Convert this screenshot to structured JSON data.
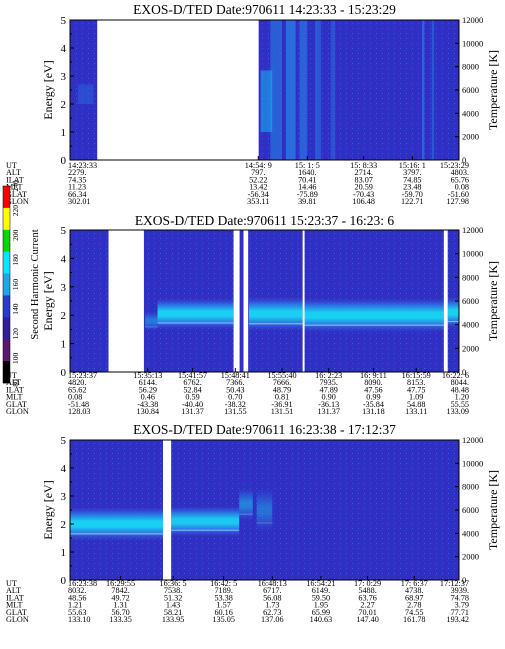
{
  "chart_data": [
    {
      "type": "heatmap",
      "title": "EXOS-D/TED   Date:970611  14:23:33 - 15:23:29",
      "ylabel": "Energy [eV]",
      "y2label": "Temperature [K]",
      "ylim": [
        0,
        5
      ],
      "y2lim": [
        0,
        12000
      ],
      "yticks": [
        "0",
        "1",
        "2",
        "3",
        "4",
        "5"
      ],
      "y2ticks": [
        "0",
        "2000",
        "4000",
        "6000",
        "8000",
        "10000",
        "12000"
      ],
      "row_labels": [
        "UT",
        "ALT",
        "ILAT",
        "MLT",
        "GLAT",
        "GLON"
      ],
      "columns": [
        {
          "f": 0.0,
          "values": [
            "14:23:33",
            "2279.",
            "74.35",
            "11.23",
            "66.34",
            "302.01"
          ]
        },
        {
          "f": 0.484,
          "values": [
            "14:54: 9",
            "797.",
            "52.22",
            "13.42",
            "-56.34",
            "353.11"
          ]
        },
        {
          "f": 0.61,
          "values": [
            "15: 1: 5",
            "1640.",
            "70.41",
            "14.46",
            "-75.89",
            "39.81"
          ]
        },
        {
          "f": 0.755,
          "values": [
            "15: 8:33",
            "2714.",
            "83.07",
            "20.59",
            "-70.43",
            "106.48"
          ]
        },
        {
          "f": 0.88,
          "values": [
            "15:16: 1",
            "3797.",
            "74.85",
            "23.48",
            "-59.70",
            "122.71"
          ]
        },
        {
          "f": 1.0,
          "values": [
            "15:23:29",
            "4803.",
            "65.76",
            "0.08",
            "-51.60",
            "127.98"
          ]
        }
      ],
      "gaps": [
        [
          0.07,
          0.485
        ]
      ],
      "bands": []
    },
    {
      "type": "heatmap",
      "title": "EXOS-D/TED   Date:970611  15:23:37 - 16:23: 6",
      "ylabel": "Energy [eV]",
      "y2label": "Temperature [K]",
      "ylim": [
        0,
        5
      ],
      "y2lim": [
        0,
        12000
      ],
      "yticks": [
        "0",
        "1",
        "2",
        "3",
        "4",
        "5"
      ],
      "y2ticks": [
        "0",
        "2000",
        "4000",
        "6000",
        "8000",
        "10000",
        "12000"
      ],
      "row_labels": [
        "UT",
        "ALT",
        "ILAT",
        "MLT",
        "GLAT",
        "GLON"
      ],
      "columns": [
        {
          "f": 0.0,
          "values": [
            "15:23:37",
            "4820.",
            "65.62",
            "0.08",
            "-51.48",
            "128.03"
          ]
        },
        {
          "f": 0.2,
          "values": [
            "15:35:13",
            "6144.",
            "56.29",
            "0.46",
            "-43.38",
            "130.84"
          ]
        },
        {
          "f": 0.315,
          "values": [
            "15:41:57",
            "6762.",
            "52.84",
            "0.59",
            "-40.40",
            "131.37"
          ]
        },
        {
          "f": 0.425,
          "values": [
            "15:48:41",
            "7366.",
            "50.43",
            "0.70",
            "-38.32",
            "131.55"
          ]
        },
        {
          "f": 0.545,
          "values": [
            "15:55:40",
            "7666.",
            "48.79",
            "0.81",
            "-36.91",
            "131.51"
          ]
        },
        {
          "f": 0.665,
          "values": [
            "16: 2:23",
            "7935.",
            "47.89",
            "0.90",
            "-36.13",
            "131.37"
          ]
        },
        {
          "f": 0.78,
          "values": [
            "16: 9:11",
            "8090.",
            "47.56",
            "0.99",
            "-35.84",
            "131.18"
          ]
        },
        {
          "f": 0.89,
          "values": [
            "16:15:59",
            "8153.",
            "47.75",
            "1.09",
            "54.88",
            "133.11"
          ]
        },
        {
          "f": 1.0,
          "values": [
            "16:22: 6",
            "8044.",
            "48.48",
            "1.20",
            "55.55",
            "133.09"
          ]
        }
      ],
      "gaps": [
        [
          0.099,
          0.19
        ],
        [
          0.4205,
          0.436
        ],
        [
          0.446,
          0.458
        ],
        [
          0.598,
          0.603
        ],
        [
          0.961,
          0.971
        ]
      ],
      "bands": [
        {
          "from": 0.193,
          "to": 0.225,
          "center": 1.8,
          "half": 0.35,
          "strength": 0.45
        },
        {
          "from": 0.225,
          "to": 0.42,
          "center": 2.05,
          "half": 0.55,
          "strength": 1.0
        },
        {
          "from": 0.46,
          "to": 0.598,
          "center": 2.05,
          "half": 0.6,
          "strength": 1.0
        },
        {
          "from": 0.603,
          "to": 0.961,
          "center": 2.0,
          "half": 0.6,
          "strength": 1.0
        },
        {
          "from": 0.971,
          "to": 1.0,
          "center": 2.1,
          "half": 0.55,
          "strength": 1.0
        }
      ]
    },
    {
      "type": "heatmap",
      "title": "EXOS-D/TED   Date:970611  16:23:38 - 17:12:37",
      "ylabel": "Energy [eV]",
      "y2label": "Temperature [K]",
      "ylim": [
        0,
        5
      ],
      "y2lim": [
        0,
        12000
      ],
      "yticks": [
        "0",
        "1",
        "2",
        "3",
        "4",
        "5"
      ],
      "y2ticks": [
        "0",
        "2000",
        "4000",
        "6000",
        "8000",
        "10000",
        "12000"
      ],
      "row_labels": [
        "UT",
        "ALT",
        "ILAT",
        "MLT",
        "GLAT",
        "GLON"
      ],
      "columns": [
        {
          "f": 0.0,
          "values": [
            "16:23:38",
            "8032.",
            "48.56",
            "1.21",
            "55.63",
            "133.10"
          ]
        },
        {
          "f": 0.13,
          "values": [
            "16:29:55",
            "7842.",
            "49.72",
            "1.31",
            "56.70",
            "133.35"
          ]
        },
        {
          "f": 0.265,
          "values": [
            "16:36: 5",
            "7538.",
            "51.32",
            "1.43",
            "58.21",
            "133.95"
          ]
        },
        {
          "f": 0.395,
          "values": [
            "16:42: 5",
            "7189.",
            "53.38",
            "1.57",
            "60.16",
            "135.05"
          ]
        },
        {
          "f": 0.52,
          "values": [
            "16:48:13",
            "6717.",
            "56.08",
            "1.73",
            "62.73",
            "137.06"
          ]
        },
        {
          "f": 0.645,
          "values": [
            "16:54:21",
            "6149.",
            "59.50",
            "1.95",
            "65.99",
            "140.63"
          ]
        },
        {
          "f": 0.765,
          "values": [
            "17: 0:29",
            "5488.",
            "63.76",
            "2.27",
            "70.01",
            "147.40"
          ]
        },
        {
          "f": 0.885,
          "values": [
            "17: 6:37",
            "4738.",
            "68.97",
            "2.78",
            "74.55",
            "161.78"
          ]
        },
        {
          "f": 1.0,
          "values": [
            "17:12:37",
            "3939.",
            "74.78",
            "3.79",
            "77.71",
            "193.42"
          ]
        }
      ],
      "gaps": [
        [
          0.239,
          0.26
        ]
      ],
      "bands": [
        {
          "from": 0.0,
          "to": 0.239,
          "center": 2.0,
          "half": 0.6,
          "strength": 1.0
        },
        {
          "from": 0.26,
          "to": 0.435,
          "center": 2.1,
          "half": 0.55,
          "strength": 0.95
        },
        {
          "from": 0.435,
          "to": 0.47,
          "center": 2.7,
          "half": 0.6,
          "strength": 0.5
        },
        {
          "from": 0.48,
          "to": 0.52,
          "center": 2.5,
          "half": 0.8,
          "strength": 0.4
        }
      ]
    }
  ],
  "colorbar": {
    "label": "Second Harmonic Current",
    "ticks": [
      "80",
      "100",
      "120",
      "140",
      "160",
      "180",
      "200",
      "220",
      "240"
    ],
    "colors": [
      "#000000",
      "#5a1870",
      "#30209a",
      "#2a3ad0",
      "#1aa8e8",
      "#00e8ff",
      "#00d800",
      "#ffff00",
      "#ff0000"
    ]
  }
}
